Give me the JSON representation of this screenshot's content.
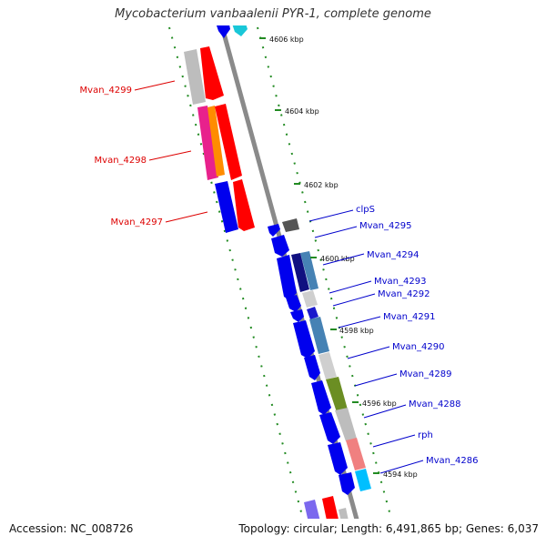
{
  "header": {
    "title": "Mycobacterium vanbaalenii PYR-1, complete genome"
  },
  "footer": {
    "accession": "Accession: NC_008726",
    "summary": "Topology: circular; Length: 6,491,865 bp; Genes: 6,037"
  },
  "scale_labels": [
    "4606 kbp",
    "4604 kbp",
    "4602 kbp",
    "4600 kbp",
    "4598 kbp",
    "4596 kbp",
    "4594 kbp"
  ],
  "colors": {
    "reverse_label": "#dd0000",
    "forward_label": "#0000cc",
    "backbone": "#808080",
    "ticks": "#228b22",
    "gene_blue": "#0000ee",
    "gene_red": "#ff0000"
  },
  "reverse_genes": [
    {
      "name": "Mvan_4299"
    },
    {
      "name": "Mvan_4298"
    },
    {
      "name": "Mvan_4297"
    }
  ],
  "forward_genes": [
    {
      "name": "clpS"
    },
    {
      "name": "Mvan_4295"
    },
    {
      "name": "Mvan_4294"
    },
    {
      "name": "Mvan_4293"
    },
    {
      "name": "Mvan_4292"
    },
    {
      "name": "Mvan_4291"
    },
    {
      "name": "Mvan_4290"
    },
    {
      "name": "Mvan_4289"
    },
    {
      "name": "Mvan_4288"
    },
    {
      "name": "rph"
    },
    {
      "name": "Mvan_4286"
    }
  ]
}
